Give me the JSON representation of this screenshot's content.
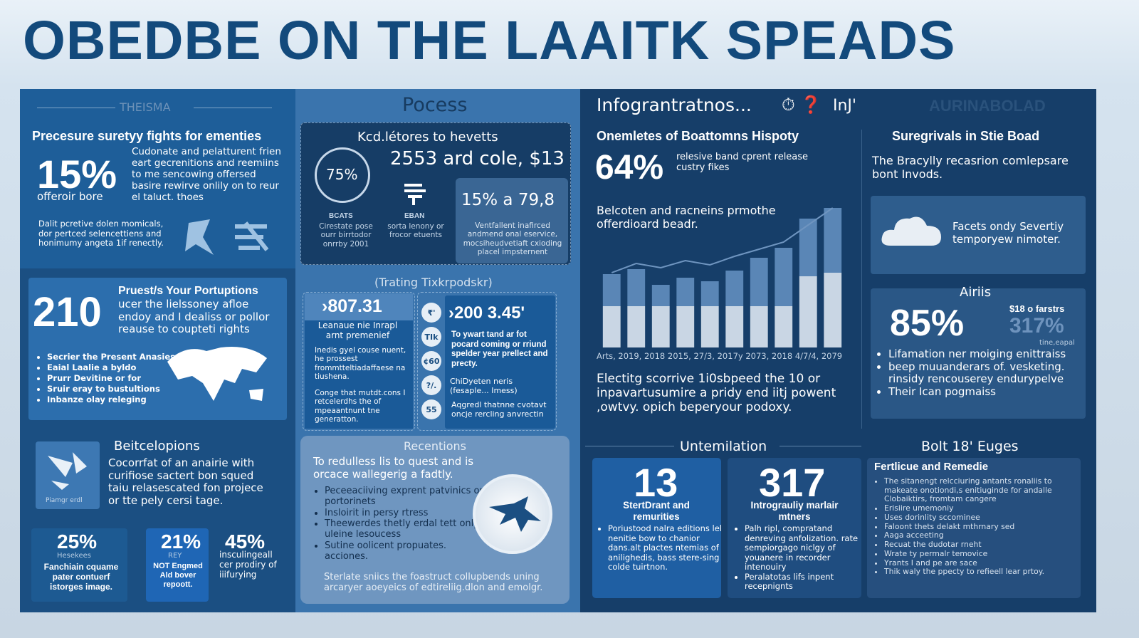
{
  "header": {
    "title": "OBEDBE ON THE LAAITK SPEADS"
  },
  "col1": {
    "top": {
      "label": "THEISMA",
      "heading": "Precesure suretyy fights for ementies",
      "stat": "15%",
      "stat_caption": "offeroir bore",
      "text": "Cudonate and pelatturent frien eart gecrenitions and reemiins to me sencowing offersed basire rewirve onlily on to reur el taluct. thoes",
      "note": "Dalit pcretive dolen momicals, dor pertced selencettiens and honimumy angeta 1if renectly."
    },
    "map_card": {
      "stat": "210",
      "heading": "Pruest/s Your Portuptions",
      "text": "ucer the lielssoney afloe endoy and I dealiss or pollor reause to coupteti rights",
      "bullets": [
        "Secrier the Present Anasies",
        "Eaial Laalie a byldo",
        "Prurr Devitine or for",
        "Sruir eray to bustultions",
        "Inbanze olay releging"
      ]
    },
    "beitcelopions": {
      "heading": "Beitcelopions",
      "text": "Cocorrfat of an anairie with curifiose sactert bon squed taiu relasescated fon projece or tte pely cersi tage.",
      "icon_caption": "Piamgr erdl"
    },
    "stats": [
      {
        "value": "25%",
        "label": "Hesekees",
        "text": "Fanchiain cquame pater contuerf istorges image."
      },
      {
        "value": "21%",
        "label": "REY",
        "text": "NOT Engmed Ald bover repoott."
      },
      {
        "value": "45%",
        "text": "insculingeall cer prodiry of iiifurying"
      }
    ]
  },
  "col2": {
    "title": "Pocess",
    "panel": {
      "heading": "Kcd.létores to hevetts",
      "ring": "75%",
      "figure": "2553 ard cole, $13",
      "left_label": "BCATS",
      "left_text": "Cirestate pose ourr birrtodor onrrby 2001",
      "mid_label": "EBAN",
      "mid_text": "sorta lenony or frocor etuents",
      "box_figure": "15% a 79,8",
      "box_text": "Ventfallent inafirced andmend onal eservice, mocsiheudvetiaft cxioding placel impsternent"
    },
    "tracking": {
      "title": "(Trating Tixkrpodskr)",
      "left": {
        "figure": "›807.31",
        "subtitle": "Leanaue nie Inrapl arnt premenief",
        "text1": "Inedis gyel couse nuent, he prossest frommtteltiadaffaese na tiushena.",
        "text2": "Conge that mutdt.cons I retcelerdhs the of mpeaantnunt tne generatton."
      },
      "right": {
        "icons": [
          "₹'",
          "TIk",
          "¢60",
          "?/.",
          "55"
        ],
        "figure": "›200 3.45'",
        "bold": "To ywart tand ar fot pocard coming or rriund spelder year prellect and precty.",
        "text1": "ChiDyeten neris (fesaple... Imess)",
        "text2": "Aqgredl thatnne cvotavt oncje rercling anvrectin"
      }
    },
    "recentions": {
      "title": "Recentions",
      "text": "To redulless lis to quest and is orcace wallegerig a fadtly.",
      "bullets": [
        "Peceeaciiving exprent patvinics orl portorinets",
        "Insloirit in persy rtress",
        "Theewerdes thetly erdal tett only uleine lesoucess",
        "Sutine oolicent propuates. acciones."
      ],
      "footer": "Sterlate sniics the foastruct collupbends uning arcaryer aoeyeics of edtireliig.dlon and emolgr."
    }
  },
  "col3": {
    "header": "Infograntratnos...",
    "header_tail": "InJ'",
    "faded": "AURINABOLAD",
    "history": {
      "heading": "Onemletes of Boattomns Hispoty",
      "stat": "64%",
      "stat_text": "relesive band cprent release custry fikes",
      "subheading": "Belcoten and racneins prmothe offerdioard beadr.",
      "chart": {
        "type": "bar",
        "x_axis": "Arts, 2019, 2018 2015, 27/3, 2017y 2073, 2018 4/7/4, 2079",
        "ylim": [
          0,
          200
        ],
        "series": [
          {
            "color": "#c9d6e4",
            "values": [
              58,
              58,
              58,
              58,
              58,
              58,
              58,
              58,
              100,
              105
            ]
          },
          {
            "color": "#5a86b6",
            "values": [
              45,
              52,
              30,
              40,
              35,
              50,
              68,
              82,
              81,
              91
            ]
          }
        ],
        "line": {
          "color": "#6f95c0",
          "values": [
            105,
            118,
            112,
            122,
            116,
            128,
            138,
            148,
            172,
            196
          ]
        }
      },
      "text": "Electitg scorrive 1i0sbpeed the 10 or inpavartusumire a pridy end iitj powent ,owtvy. opich beperyour podoxy."
    },
    "survivals": {
      "heading": "Suregrivals in Stie Boad",
      "text": "The Bracylly recasrion comlepsare bont Invods.",
      "cloud_text": "Facets ondy Severtiy temporyew nimoter.",
      "airis": {
        "title": "Airiis",
        "stat": "85%",
        "side_value": "$18 o farstrs",
        "side_stat": "317%",
        "side_caption": "tine,eapal",
        "bullets": [
          "Lifamation ner moiging enittraiss",
          "beep muuanderars of. vesketing. rinsidy rencouserey endurypelve",
          "Their Ican pogmaiss"
        ]
      }
    },
    "untemilation": {
      "title": "Untemilation",
      "cards": [
        {
          "stat": "13",
          "heading": "StertDrant and remurities",
          "bullets": [
            "Poriustood nalra editions lel nenitie bow to chanior dans.alt plactes ntemias of anilighedis, bass stere-sing colde tuirtnon."
          ]
        },
        {
          "stat": "317",
          "heading": "Intrograuliy marlair mtners",
          "bullets": [
            "Palh ripl, compratand denreving anfolization. rate sempiorgago niclgy of youanere in recorder intenouiry",
            "Peralatotas lifs inpent recepnignts"
          ]
        }
      ]
    },
    "edges": {
      "title": "Bolt 18' Euges",
      "heading": "Fertlicue and Remedie",
      "bullets": [
        "The sitanengt relcciuring antants ronaliis to makeate onotiondi,s enitiuginde for andalle Clobaiktirs, fromtam cangere",
        "Erisiire umemoniy",
        "Uses dorinlity sccominee",
        "Faloont thets delakt mthrnary sed",
        "Aaga acceeting",
        "Recuat the dudotar rneht",
        "Wrate ty permalr temovice",
        "Yrants I and pe are sace",
        "Thik waly the ppecty to refieell lear prtoy."
      ]
    }
  }
}
